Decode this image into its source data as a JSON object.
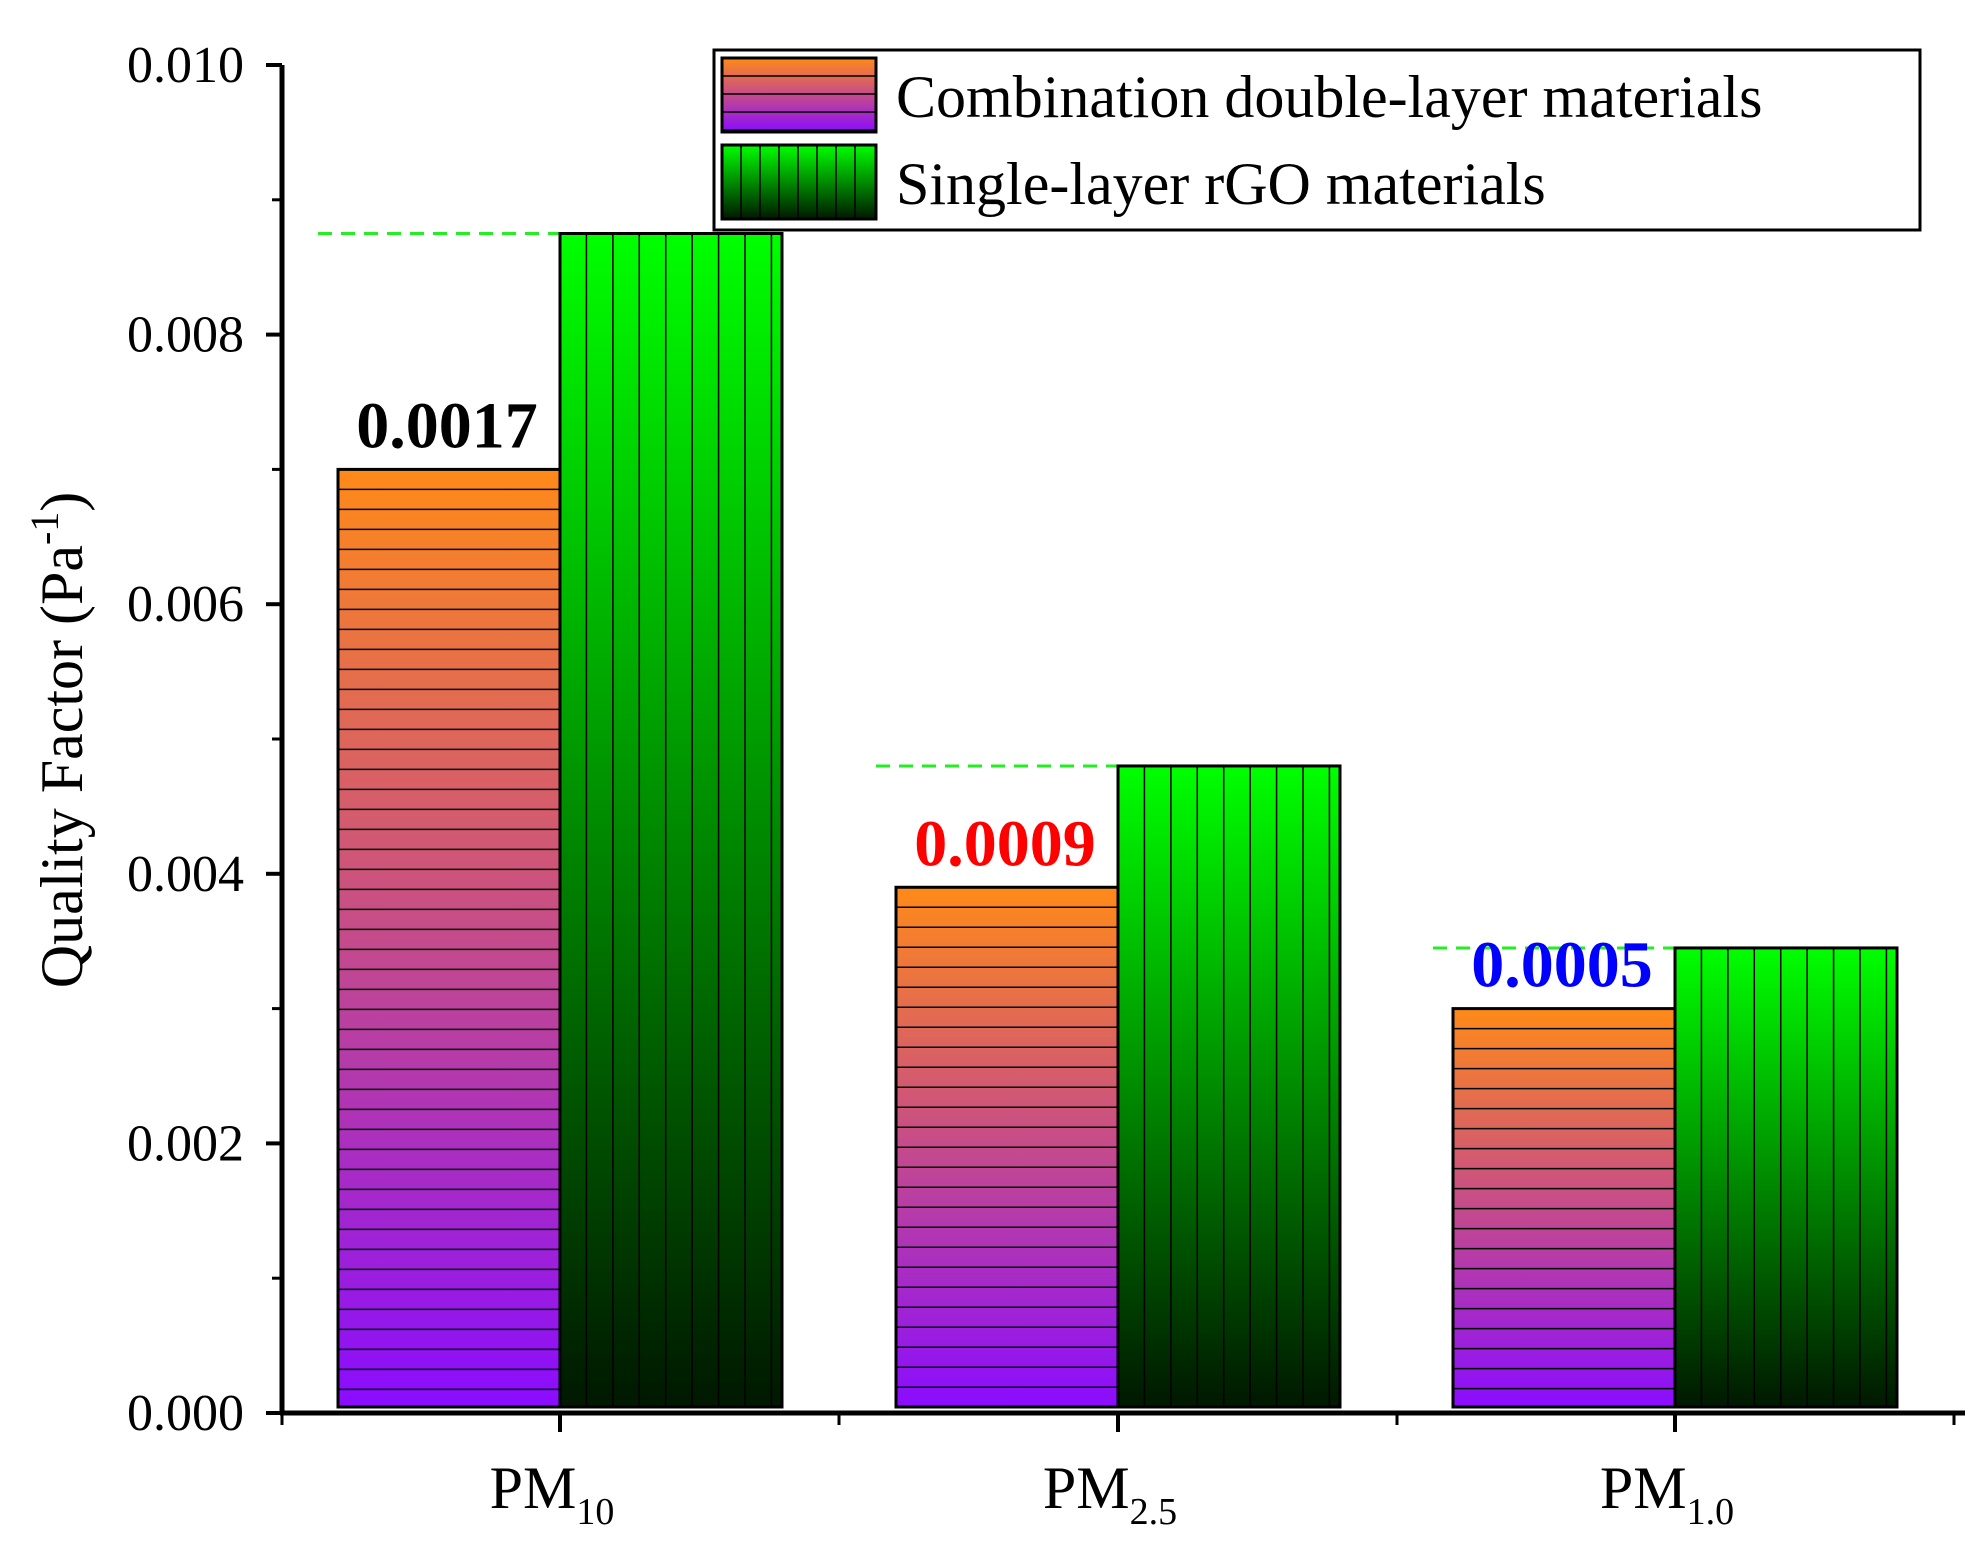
{
  "chart_data": {
    "type": "bar",
    "title": "",
    "ylabel": {
      "main": "Quality Factor (Pa",
      "sup": "-1",
      "close": ")"
    },
    "xlabel": "",
    "ylim": [
      0,
      0.01
    ],
    "yticks": [
      "0.000",
      "0.002",
      "0.004",
      "0.006",
      "0.008",
      "0.010"
    ],
    "categories": [
      {
        "base": "PM",
        "sub": "10"
      },
      {
        "base": "PM",
        "sub": "2.5"
      },
      {
        "base": "PM",
        "sub": "1.0"
      }
    ],
    "series": [
      {
        "name": "Combination double-layer materials",
        "values": [
          0.007,
          0.0039,
          0.003
        ],
        "gradient_top": "#ff8a18",
        "gradient_bottom": "#8a0cff",
        "hatch": "horizontal"
      },
      {
        "name": "Single-layer rGO materials",
        "values": [
          0.00875,
          0.0048,
          0.00345
        ],
        "gradient_top": "#00ff00",
        "gradient_bottom": "#001800",
        "hatch": "vertical"
      }
    ],
    "difference_labels": [
      {
        "text": "0.0017",
        "color": "#000000",
        "level": 0.00875
      },
      {
        "text": "0.0009",
        "color": "#ff0000",
        "level": 0.0048
      },
      {
        "text": "0.0005",
        "color": "#0000ff",
        "level": 0.00345
      }
    ],
    "reference_line_color": "#22ee22",
    "legend_position": "top-right"
  }
}
